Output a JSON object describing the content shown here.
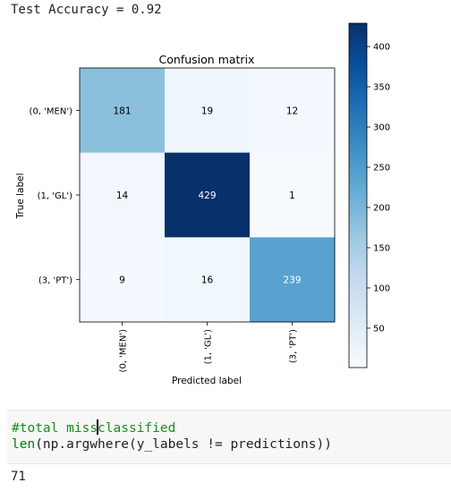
{
  "cell_output": {
    "accuracy_text": "Test Accuracy = 0.92"
  },
  "chart_data": {
    "type": "heatmap",
    "title": "Confusion matrix",
    "xlabel": "Predicted label",
    "ylabel": "True label",
    "row_labels": [
      "(0, 'MEN')",
      "(1, 'GL')",
      "(3, 'PT')"
    ],
    "col_labels": [
      "(0, 'MEN')",
      "(1, 'GL')",
      "(3, 'PT')"
    ],
    "values": [
      [
        181,
        19,
        12
      ],
      [
        14,
        429,
        1
      ],
      [
        9,
        16,
        239
      ]
    ],
    "colormap": "Blues",
    "vmin": 1,
    "vmax": 429,
    "colorbar_ticks": [
      50,
      100,
      150,
      200,
      250,
      300,
      350,
      400
    ],
    "colors": {
      "low": "#f7fbff",
      "high": "#08306b",
      "text_dark": "#000000",
      "text_light": "#ffffff"
    }
  },
  "code_cell": {
    "comment_before_cursor": "#total miss",
    "comment_after_cursor": "classified",
    "builtin": "len",
    "rest": "(np.argwhere(y_labels != predictions))"
  },
  "result_output": "71"
}
